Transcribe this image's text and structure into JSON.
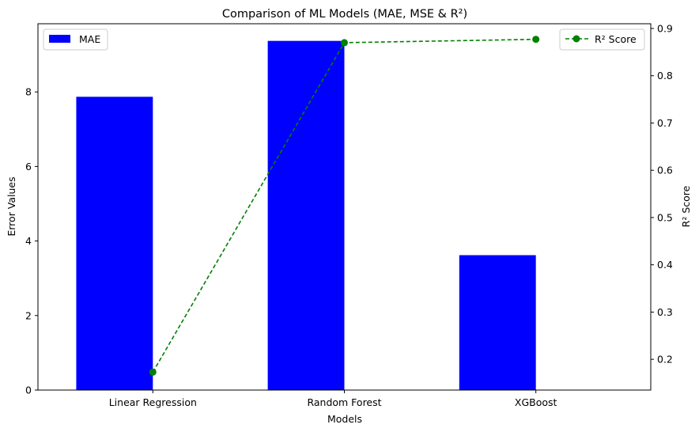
{
  "chart_data": {
    "type": "bar",
    "title": "Comparison of ML Models (MAE, MSE & R²)",
    "xlabel": "Models",
    "ylabel": "Error Values",
    "y2label": "R² Score",
    "categories": [
      "Linear Regression",
      "Random Forest",
      "XGBoost"
    ],
    "ylim": [
      0,
      9.83
    ],
    "y2lim": [
      0.135,
      0.91
    ],
    "yticks": [
      0,
      2,
      4,
      6,
      8
    ],
    "y2ticks": [
      0.2,
      0.3,
      0.4,
      0.5,
      0.6,
      0.7,
      0.8,
      0.9
    ],
    "grid": false,
    "series": [
      {
        "name": "MAE",
        "kind": "bar",
        "axis": "left",
        "color": "#0000ff",
        "values": [
          7.87,
          9.37,
          3.62
        ]
      },
      {
        "name": "R² Score",
        "kind": "line",
        "axis": "right",
        "color": "#008000",
        "line_style": "dashed",
        "marker": "circle",
        "values": [
          0.173,
          0.87,
          0.877
        ]
      }
    ],
    "legends": [
      {
        "placement": "top-left",
        "entries": [
          "MAE"
        ]
      },
      {
        "placement": "top-right",
        "entries": [
          "R² Score"
        ]
      }
    ]
  }
}
